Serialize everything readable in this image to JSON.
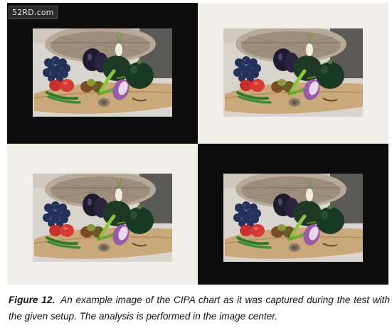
{
  "watermark": "52RD.com",
  "figure": {
    "quadrants": [
      {
        "position": "top-left",
        "background": "dark"
      },
      {
        "position": "top-right",
        "background": "light"
      },
      {
        "position": "bottom-left",
        "background": "light"
      },
      {
        "position": "bottom-right",
        "background": "dark"
      }
    ],
    "photo_subject": "vegetables-still-life"
  },
  "caption": {
    "label": "Figure 12.",
    "text": "An example image of the CIPA chart as it was captured during the test with the given setup. The analysis is performed in the image center."
  },
  "colors": {
    "dark_panel": "#0d0d0d",
    "light_panel": "#f1eeea",
    "caption_text": "#111111"
  }
}
